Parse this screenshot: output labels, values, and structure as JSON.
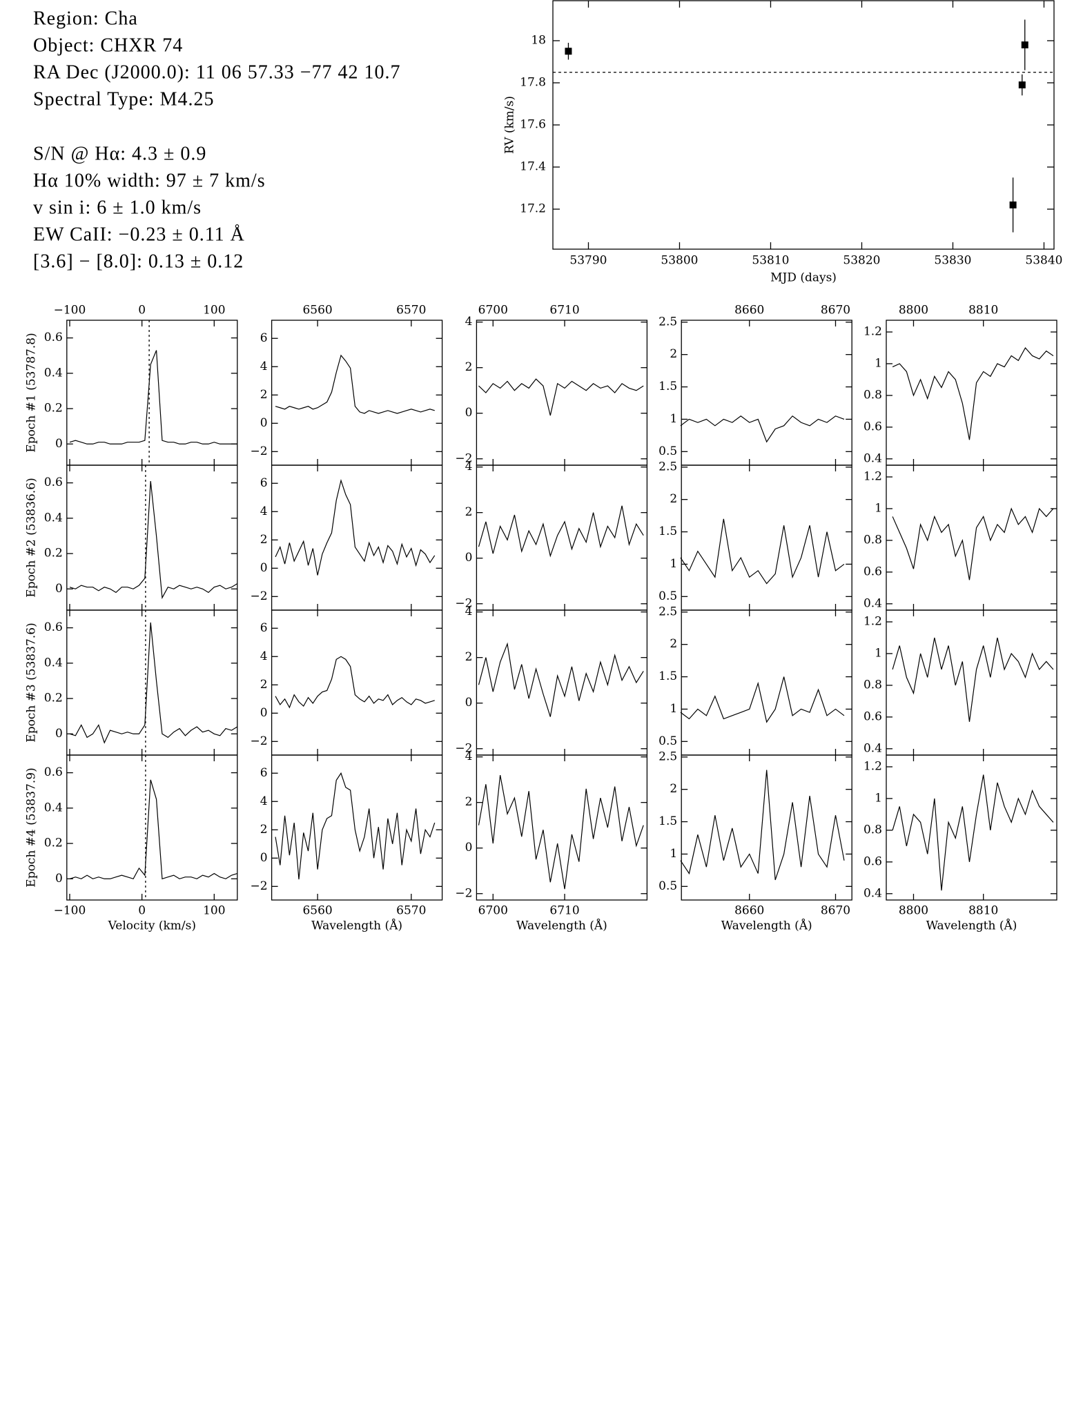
{
  "header_lines": [
    "Region: Cha",
    "Object: CHXR 74",
    "RA Dec (J2000.0): 11 06 57.33 −77 42 10.7",
    "Spectral Type: M4.25",
    "S/N @ Hα: 4.3 ± 0.9",
    "Hα 10% width: 97 ± 7 km/s",
    "v sin i: 6 ± 1.0 km/s",
    "EW CaII: −0.23 ± 0.11 Å",
    "[3.6] − [8.0]: 0.13 ± 0.12"
  ],
  "chart_data": [
    {
      "type": "scatter",
      "x_label": "MJD (days)",
      "y_label": "RV (km/s)",
      "color": "#000000",
      "x": [
        53787.8,
        53836.6,
        53837.6,
        53837.9
      ],
      "values": [
        17.95,
        17.22,
        17.79,
        17.98
      ],
      "errors": [
        0.04,
        0.13,
        0.05,
        0.12
      ],
      "rv_mean": 17.85,
      "xlim": [
        53786.1,
        53841.1
      ],
      "ylim": [
        17.01,
        18.19
      ],
      "xticks": [
        53790,
        53800,
        53810,
        53820,
        53830,
        53840
      ],
      "yticks": [
        17.2,
        17.4,
        17.6,
        17.8,
        18
      ]
    },
    {
      "type": "line",
      "x_label": "Velocity (km/s)",
      "xlim": [
        -104,
        132
      ],
      "ylim": [
        -0.12,
        0.7
      ],
      "xticks": [
        {
          "value": -100,
          "label": "−100"
        },
        0,
        100
      ],
      "yticks": [
        0,
        0.2,
        0.4,
        0.6
      ],
      "x": [
        -100,
        -92,
        -84,
        -76,
        -68,
        -60,
        -52,
        -44,
        -36,
        -28,
        -20,
        -12,
        -4,
        4,
        12,
        20,
        28,
        36,
        44,
        52,
        60,
        68,
        76,
        84,
        92,
        100,
        108,
        116,
        124,
        132
      ],
      "series": [
        {
          "name": "Epoch #1 (53787.8)",
          "color": "#000000",
          "ref_velocity": 10,
          "values": [
            0.01,
            0.02,
            0.01,
            0,
            0,
            0.01,
            0.01,
            0,
            0,
            0,
            0.01,
            0.01,
            0.01,
            0.02,
            0.45,
            0.53,
            0.02,
            0.01,
            0.01,
            0,
            0,
            0.01,
            0.01,
            0,
            0,
            0.01,
            0,
            0,
            0,
            0
          ]
        },
        {
          "name": "Epoch #2 (53836.6)",
          "color": "#000000",
          "ref_velocity": 5,
          "values": [
            0.01,
            0,
            0.02,
            0.01,
            0.01,
            -0.01,
            0.01,
            0,
            -0.02,
            0.01,
            0.01,
            0,
            0.02,
            0.06,
            0.61,
            0.3,
            -0.05,
            0.01,
            0,
            0.02,
            0.01,
            0,
            0.01,
            0,
            -0.02,
            0.01,
            0.02,
            0,
            0.01,
            0.03
          ]
        },
        {
          "name": "Epoch #3 (53837.6)",
          "color": "#000000",
          "ref_velocity": 5,
          "values": [
            0,
            -0.01,
            0.05,
            -0.02,
            0,
            0.05,
            -0.05,
            0.02,
            0.01,
            0,
            0.01,
            0,
            0,
            0.05,
            0.63,
            0.3,
            0,
            -0.02,
            0.01,
            0.03,
            -0.01,
            0.02,
            0.04,
            0.01,
            0.02,
            0,
            -0.01,
            0.03,
            0.02,
            0.04
          ]
        },
        {
          "name": "Epoch #4 (53837.9)",
          "color": "#000000",
          "ref_velocity": 5,
          "values": [
            0,
            0.01,
            0,
            0.02,
            0,
            0.01,
            0,
            0,
            0.01,
            0.02,
            0.01,
            0,
            0.06,
            0.02,
            0.56,
            0.45,
            0,
            0.01,
            0.02,
            0,
            0.01,
            0.01,
            0,
            0.02,
            0.01,
            0.03,
            0.01,
            0,
            0.02,
            0.03
          ]
        }
      ]
    },
    {
      "type": "line",
      "x_label": "Wavelength (Å)",
      "xlim": [
        6555.1,
        6573.3
      ],
      "ylim": [
        -2.96,
        7.28
      ],
      "xticks": [
        6560,
        6570
      ],
      "yticks": [
        {
          "value": -2,
          "label": "−2"
        },
        0,
        2,
        4,
        6
      ],
      "x": [
        6555.5,
        6556,
        6556.5,
        6557,
        6557.5,
        6558,
        6558.5,
        6559,
        6559.5,
        6560,
        6560.5,
        6561,
        6561.5,
        6562,
        6562.5,
        6563,
        6563.5,
        6564,
        6564.5,
        6565,
        6565.5,
        6566,
        6566.5,
        6567,
        6567.5,
        6568,
        6568.5,
        6569,
        6569.5,
        6570,
        6570.5,
        6571,
        6571.5,
        6572,
        6572.5
      ],
      "series": [
        {
          "color": "#000000",
          "values": [
            1.2,
            1.1,
            1.0,
            1.2,
            1.1,
            1.0,
            1.1,
            1.2,
            1.0,
            1.1,
            1.3,
            1.5,
            2.2,
            3.6,
            4.8,
            4.4,
            3.9,
            1.2,
            0.8,
            0.7,
            0.9,
            0.8,
            0.7,
            0.8,
            0.9,
            0.8,
            0.7,
            0.8,
            0.9,
            1.0,
            0.9,
            0.8,
            0.9,
            1.0,
            0.9
          ]
        },
        {
          "color": "#000000",
          "values": [
            0.8,
            1.5,
            0.3,
            1.8,
            0.5,
            1.2,
            1.9,
            0.2,
            1.4,
            -0.5,
            1.0,
            1.8,
            2.5,
            4.8,
            6.2,
            5.2,
            4.5,
            1.5,
            1.0,
            0.5,
            1.8,
            0.9,
            1.5,
            0.4,
            1.6,
            1.2,
            0.3,
            1.7,
            0.8,
            1.4,
            0.2,
            1.3,
            1.0,
            0.4,
            0.9
          ]
        },
        {
          "color": "#000000",
          "values": [
            1.2,
            0.6,
            1.0,
            0.4,
            1.3,
            0.8,
            0.5,
            1.1,
            0.7,
            1.2,
            1.5,
            1.6,
            2.4,
            3.8,
            4.0,
            3.8,
            3.3,
            1.3,
            1.0,
            0.8,
            1.2,
            0.7,
            1.0,
            0.9,
            1.3,
            0.6,
            0.9,
            1.1,
            0.8,
            0.6,
            1.0,
            0.9,
            0.7,
            0.8,
            0.9
          ]
        },
        {
          "color": "#000000",
          "values": [
            1.5,
            -0.5,
            3.0,
            0.2,
            2.5,
            -1.5,
            1.8,
            0.5,
            3.2,
            -0.8,
            2.0,
            2.8,
            3.0,
            5.5,
            6.0,
            5.0,
            4.8,
            2.0,
            0.5,
            1.5,
            3.5,
            0.0,
            2.2,
            -0.8,
            2.8,
            1.0,
            3.2,
            -0.5,
            2.0,
            1.2,
            3.5,
            0.3,
            2.0,
            1.5,
            2.5
          ]
        }
      ]
    },
    {
      "type": "line",
      "x_label": "Wavelength (Å)",
      "xlim": [
        6697.7,
        6721.5
      ],
      "ylim": [
        -2.28,
        4.08
      ],
      "xticks": [
        6700,
        6710
      ],
      "yticks": [
        {
          "value": -2,
          "label": "−2"
        },
        0,
        2,
        4
      ],
      "x": [
        6698,
        6699,
        6700,
        6701,
        6702,
        6703,
        6704,
        6705,
        6706,
        6707,
        6708,
        6709,
        6710,
        6711,
        6712,
        6713,
        6714,
        6715,
        6716,
        6717,
        6718,
        6719,
        6720,
        6721
      ],
      "series": [
        {
          "color": "#000000",
          "values": [
            1.2,
            0.9,
            1.3,
            1.1,
            1.4,
            1.0,
            1.3,
            1.1,
            1.5,
            1.2,
            -0.1,
            1.3,
            1.1,
            1.4,
            1.2,
            1.0,
            1.3,
            1.1,
            1.2,
            0.9,
            1.3,
            1.1,
            1.0,
            1.2
          ]
        },
        {
          "color": "#000000",
          "values": [
            0.5,
            1.6,
            0.2,
            1.4,
            0.8,
            1.9,
            0.3,
            1.2,
            0.6,
            1.5,
            0.1,
            1.0,
            1.6,
            0.4,
            1.3,
            0.7,
            2.0,
            0.5,
            1.4,
            0.9,
            2.3,
            0.6,
            1.5,
            1.0
          ]
        },
        {
          "color": "#000000",
          "values": [
            0.8,
            2.0,
            0.5,
            1.8,
            2.6,
            0.6,
            1.7,
            0.2,
            1.5,
            0.4,
            -0.6,
            1.2,
            0.3,
            1.6,
            0.1,
            1.3,
            0.5,
            1.8,
            0.8,
            2.1,
            1.0,
            1.6,
            0.9,
            1.4
          ]
        },
        {
          "color": "#000000",
          "values": [
            1.0,
            2.8,
            0.2,
            3.2,
            1.5,
            2.2,
            0.5,
            2.5,
            -0.5,
            0.8,
            -1.5,
            0.2,
            -1.8,
            0.6,
            -0.6,
            2.6,
            0.4,
            2.2,
            0.9,
            2.7,
            0.3,
            1.8,
            0.1,
            1.0
          ]
        }
      ]
    },
    {
      "type": "line",
      "x_label": "Wavelength (Å)",
      "xlim": [
        8652.1,
        8671.9
      ],
      "ylim": [
        0.29,
        2.53
      ],
      "xticks": [
        8660,
        8670
      ],
      "yticks": [
        0.5,
        1,
        1.5,
        2,
        2.5
      ],
      "x": [
        8652,
        8653,
        8654,
        8655,
        8656,
        8657,
        8658,
        8659,
        8660,
        8661,
        8662,
        8663,
        8664,
        8665,
        8666,
        8667,
        8668,
        8669,
        8670,
        8671
      ],
      "series": [
        {
          "color": "#000000",
          "values": [
            0.9,
            1.0,
            0.95,
            1.0,
            0.9,
            1.0,
            0.95,
            1.05,
            0.95,
            1.0,
            0.65,
            0.85,
            0.9,
            1.05,
            0.95,
            0.9,
            1.0,
            0.95,
            1.05,
            1.0
          ]
        },
        {
          "color": "#000000",
          "values": [
            1.1,
            0.9,
            1.2,
            1.0,
            0.8,
            1.7,
            0.9,
            1.1,
            0.8,
            0.9,
            0.7,
            0.85,
            1.6,
            0.8,
            1.1,
            1.6,
            0.8,
            1.5,
            0.9,
            1.0
          ]
        },
        {
          "color": "#000000",
          "values": [
            0.95,
            0.85,
            1.0,
            0.9,
            1.2,
            0.85,
            0.9,
            0.95,
            1.0,
            1.4,
            0.8,
            1.0,
            1.5,
            0.9,
            1.0,
            0.95,
            1.3,
            0.9,
            1.0,
            0.9
          ]
        },
        {
          "color": "#000000",
          "values": [
            0.9,
            0.7,
            1.3,
            0.8,
            1.6,
            0.9,
            1.4,
            0.8,
            1.0,
            0.7,
            2.3,
            0.6,
            1.0,
            1.8,
            0.8,
            1.9,
            1.0,
            0.8,
            1.6,
            0.9
          ]
        }
      ]
    },
    {
      "type": "line",
      "x_label": "Wavelength (Å)",
      "xlim": [
        8796.1,
        8820.5
      ],
      "ylim": [
        0.36,
        1.274
      ],
      "xticks": [
        8800,
        8810
      ],
      "yticks": [
        0.4,
        0.6,
        0.8,
        1,
        1.2
      ],
      "x": [
        8797,
        8798,
        8799,
        8800,
        8801,
        8802,
        8803,
        8804,
        8805,
        8806,
        8807,
        8808,
        8809,
        8810,
        8811,
        8812,
        8813,
        8814,
        8815,
        8816,
        8817,
        8818,
        8819,
        8820
      ],
      "series": [
        {
          "color": "#000000",
          "values": [
            0.98,
            1.0,
            0.95,
            0.8,
            0.9,
            0.78,
            0.92,
            0.85,
            0.95,
            0.9,
            0.75,
            0.52,
            0.88,
            0.95,
            0.92,
            1.0,
            0.98,
            1.05,
            1.02,
            1.1,
            1.05,
            1.03,
            1.08,
            1.05
          ]
        },
        {
          "color": "#000000",
          "values": [
            0.95,
            0.85,
            0.75,
            0.62,
            0.9,
            0.8,
            0.95,
            0.85,
            0.9,
            0.7,
            0.8,
            0.55,
            0.88,
            0.95,
            0.8,
            0.9,
            0.85,
            1.0,
            0.9,
            0.95,
            0.85,
            1.0,
            0.95,
            1.0
          ]
        },
        {
          "color": "#000000",
          "values": [
            0.9,
            1.05,
            0.85,
            0.75,
            1.0,
            0.85,
            1.1,
            0.9,
            1.05,
            0.8,
            0.95,
            0.57,
            0.9,
            1.05,
            0.85,
            1.1,
            0.9,
            1.0,
            0.95,
            0.85,
            1.0,
            0.9,
            0.95,
            0.9
          ]
        },
        {
          "color": "#000000",
          "values": [
            0.8,
            0.95,
            0.7,
            0.9,
            0.85,
            0.65,
            1.0,
            0.42,
            0.85,
            0.75,
            0.95,
            0.6,
            0.9,
            1.15,
            0.8,
            1.1,
            0.95,
            0.85,
            1.0,
            0.9,
            1.05,
            0.95,
            0.9,
            0.85
          ]
        }
      ]
    }
  ]
}
